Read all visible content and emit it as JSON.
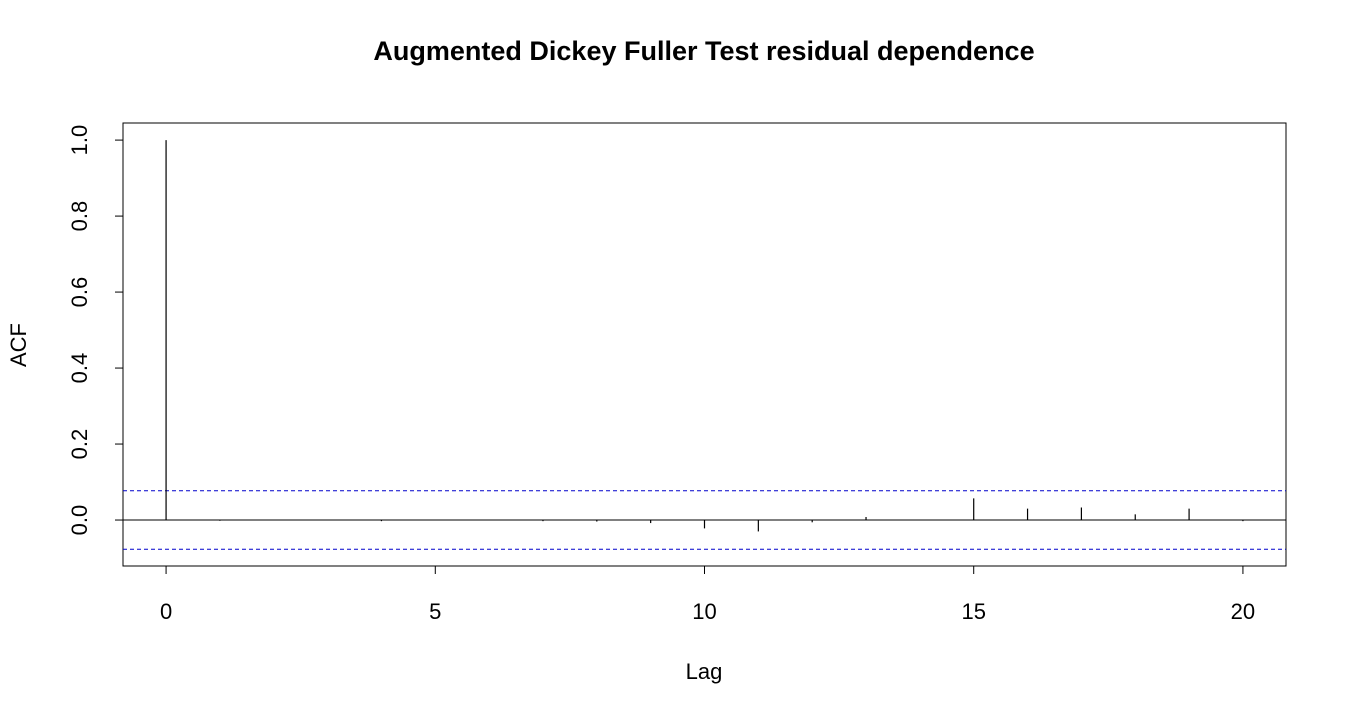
{
  "chart_data": {
    "type": "acf",
    "title": "Augmented Dickey Fuller Test residual dependence",
    "x_label": "Lag",
    "y_label": "ACF",
    "x": [
      0,
      1,
      2,
      3,
      4,
      5,
      6,
      7,
      8,
      9,
      10,
      11,
      12,
      13,
      14,
      15,
      16,
      17,
      18,
      19,
      20
    ],
    "values": [
      1,
      -0.002,
      0,
      0,
      -0.003,
      0,
      0,
      -0.003,
      -0.004,
      -0.008,
      -0.022,
      -0.03,
      -0.006,
      0.008,
      0,
      0.057,
      0.03,
      0.033,
      0.015,
      0.03,
      -0.003
    ],
    "color": "#000000",
    "ci_upper": 0.077,
    "ci_lower": -0.077,
    "ci_color": "#0000cc",
    "xlim": [
      -0.8,
      20.8
    ],
    "ylim": [
      -0.121,
      1.045
    ],
    "xticks": [
      0,
      5,
      10,
      15,
      20
    ],
    "yticks": [
      {
        "value": 0,
        "label": "0.0"
      },
      0.2,
      0.4,
      0.6,
      0.8,
      {
        "value": 1,
        "label": "1.0"
      }
    ]
  }
}
